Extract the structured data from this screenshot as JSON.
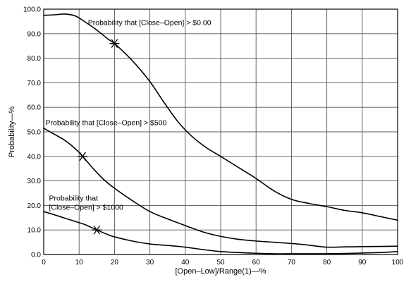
{
  "chart_data": {
    "type": "line",
    "xlabel": "[Open–Low]/Range(1)—%",
    "ylabel": "Probability—%",
    "xlim": [
      0,
      100
    ],
    "ylim": [
      0,
      100
    ],
    "x_ticks": [
      "0",
      "10",
      "20",
      "30",
      "40",
      "50",
      "60",
      "70",
      "80",
      "90",
      "100"
    ],
    "y_ticks": [
      "0.0",
      "10.0",
      "20.0",
      "30.0",
      "40.0",
      "50.0",
      "60.0",
      "70.0",
      "80.0",
      "90.0",
      "100.0"
    ],
    "grid": true,
    "series": [
      {
        "name": "Probability that [Close–Open] > $0.00",
        "label_lines": [
          "Probability that [Close–Open] > $0.00"
        ],
        "points": [
          [
            0,
            97.5
          ],
          [
            3,
            97.7
          ],
          [
            6,
            98.0
          ],
          [
            9,
            97.2
          ],
          [
            12,
            94.5
          ],
          [
            15,
            91.5
          ],
          [
            18,
            88
          ],
          [
            20,
            86
          ],
          [
            23,
            82
          ],
          [
            26,
            77.5
          ],
          [
            30,
            70.5
          ],
          [
            34,
            62
          ],
          [
            38,
            54
          ],
          [
            42,
            48
          ],
          [
            46,
            43.5
          ],
          [
            50,
            40
          ],
          [
            55,
            35.5
          ],
          [
            60,
            31
          ],
          [
            65,
            26
          ],
          [
            70,
            22.5
          ],
          [
            75,
            20.8
          ],
          [
            80,
            19.5
          ],
          [
            85,
            18
          ],
          [
            90,
            17
          ],
          [
            95,
            15.5
          ],
          [
            100,
            14
          ]
        ],
        "marker": [
          20,
          86
        ]
      },
      {
        "name": "Probability that [Close–Open] > $500",
        "label_lines": [
          "Probability that [Close–Open] > $500"
        ],
        "points": [
          [
            0,
            51.5
          ],
          [
            3,
            49
          ],
          [
            6,
            46.5
          ],
          [
            9,
            43
          ],
          [
            11,
            40
          ],
          [
            14,
            35
          ],
          [
            17,
            30.5
          ],
          [
            20,
            27
          ],
          [
            25,
            22
          ],
          [
            30,
            17.5
          ],
          [
            35,
            14.5
          ],
          [
            40,
            11.8
          ],
          [
            45,
            9.2
          ],
          [
            50,
            7.4
          ],
          [
            55,
            6.2
          ],
          [
            60,
            5.5
          ],
          [
            65,
            5.0
          ],
          [
            70,
            4.5
          ],
          [
            75,
            3.8
          ],
          [
            80,
            3.0
          ],
          [
            85,
            3.1
          ],
          [
            90,
            3.2
          ],
          [
            95,
            3.3
          ],
          [
            100,
            3.4
          ]
        ],
        "marker": [
          11,
          40
        ]
      },
      {
        "name": "Probability that [Close–Open] > $1000",
        "label_lines": [
          "Probability that",
          "[Close–Open] > $1000"
        ],
        "points": [
          [
            0,
            17.5
          ],
          [
            3,
            16.2
          ],
          [
            6,
            14.8
          ],
          [
            10,
            13
          ],
          [
            12,
            12
          ],
          [
            15,
            10
          ],
          [
            18,
            8.2
          ],
          [
            20,
            7.2
          ],
          [
            25,
            5.5
          ],
          [
            30,
            4.3
          ],
          [
            35,
            3.7
          ],
          [
            40,
            3.0
          ],
          [
            45,
            2.0
          ],
          [
            50,
            1.2
          ],
          [
            55,
            0.8
          ],
          [
            60,
            0.5
          ],
          [
            65,
            0.3
          ],
          [
            70,
            0.3
          ],
          [
            75,
            0.3
          ],
          [
            80,
            0.3
          ],
          [
            85,
            0.4
          ],
          [
            90,
            0.6
          ],
          [
            95,
            0.8
          ],
          [
            100,
            1.2
          ]
        ],
        "marker": [
          15,
          10
        ]
      }
    ]
  }
}
